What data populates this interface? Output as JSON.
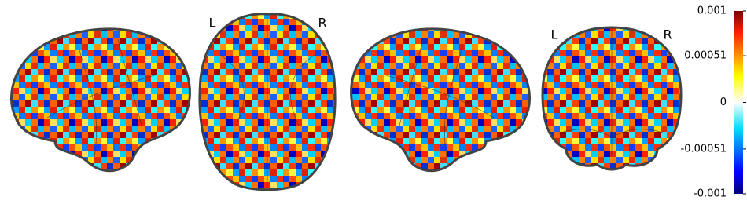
{
  "chart_data": {
    "type": "glass-brain",
    "views": [
      {
        "labels": []
      },
      {
        "labels": [
          "L",
          "R"
        ]
      },
      {
        "labels": []
      },
      {
        "labels": [
          "L",
          "R"
        ]
      }
    ],
    "colorbar": {
      "ylim": [
        -0.001,
        0.001
      ],
      "yticks": [
        0.001,
        0.00051,
        0,
        -0.00051,
        -0.001
      ]
    }
  }
}
